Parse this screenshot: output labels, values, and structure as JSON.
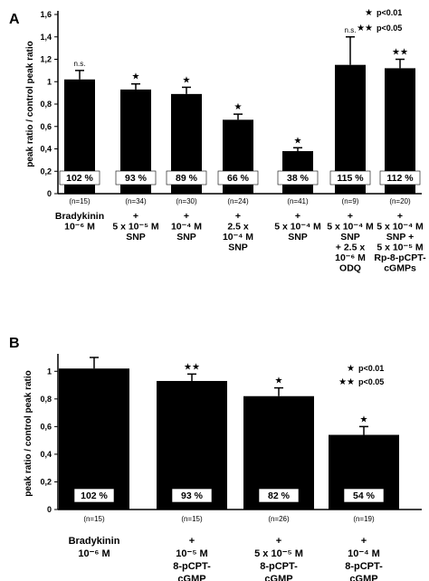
{
  "chart_data": [
    {
      "type": "bar",
      "panel_label": "A",
      "ylabel": "peak ratio / control peak ratio",
      "ylim": [
        0,
        1.6
      ],
      "yticks": [
        "0",
        "0,2",
        "0,4",
        "0,6",
        "0,8",
        "1",
        "1,2",
        "1,4",
        "1,6"
      ],
      "legend": [
        {
          "symbol": "★",
          "text": "p<0.01"
        },
        {
          "symbol": "★★",
          "text": "p<0.05"
        }
      ],
      "categories": [
        {
          "n": "(n=15)",
          "lines": [
            "Bradykinin",
            "10⁻⁶ M"
          ]
        },
        {
          "n": "(n=34)",
          "lines": [
            "+",
            "5 x 10⁻⁵ M",
            "SNP"
          ]
        },
        {
          "n": "(n=30)",
          "lines": [
            "+",
            "10⁻⁴ M",
            "SNP"
          ]
        },
        {
          "n": "(n=24)",
          "lines": [
            "+",
            "2.5 x",
            "10⁻⁴ M",
            "SNP"
          ]
        },
        {
          "n": "(n=41)",
          "lines": [
            "+",
            "5 x 10⁻⁴ M",
            "SNP"
          ]
        },
        {
          "n": "(n=9)",
          "lines": [
            "+",
            "5 x 10⁻⁴ M",
            "SNP",
            "+ 2.5 x",
            "10⁻⁶ M",
            "ODQ"
          ]
        },
        {
          "n": "(n=20)",
          "lines": [
            "+",
            "5 x 10⁻⁴ M",
            "SNP +",
            "5 x 10⁻⁵ M",
            "Rp-8-pCPT-",
            "cGMPs"
          ]
        }
      ],
      "values": [
        1.02,
        0.93,
        0.89,
        0.66,
        0.38,
        1.15,
        1.12
      ],
      "errors": [
        0.08,
        0.05,
        0.06,
        0.05,
        0.03,
        0.25,
        0.08
      ],
      "percent_labels": [
        "102 %",
        "93 %",
        "89 %",
        "66 %",
        "38 %",
        "115 %",
        "112 %"
      ],
      "significance": [
        "n.s.",
        "★",
        "★",
        "★",
        "★",
        "n.s.",
        "★★"
      ]
    },
    {
      "type": "bar",
      "panel_label": "B",
      "ylabel": "peak ratio / control peak ratio",
      "ylim": [
        0,
        1.1
      ],
      "yticks": [
        "0",
        "0,2",
        "0,4",
        "0,6",
        "0,8",
        "1"
      ],
      "legend": [
        {
          "symbol": "★",
          "text": "p<0.01"
        },
        {
          "symbol": "★★",
          "text": "p<0.05"
        }
      ],
      "categories": [
        {
          "n": "(n=15)",
          "lines": [
            "Bradykinin",
            "10⁻⁶ M"
          ]
        },
        {
          "n": "(n=15)",
          "lines": [
            "+",
            "10⁻⁵ M",
            "8-pCPT-",
            "cGMP"
          ]
        },
        {
          "n": "(n=26)",
          "lines": [
            "+",
            "5 x 10⁻⁵ M",
            "8-pCPT-",
            "cGMP"
          ]
        },
        {
          "n": "(n=19)",
          "lines": [
            "+",
            "10⁻⁴ M",
            "8-pCPT-",
            "cGMP"
          ]
        }
      ],
      "values": [
        1.02,
        0.93,
        0.82,
        0.54
      ],
      "errors": [
        0.08,
        0.05,
        0.06,
        0.06
      ],
      "percent_labels": [
        "102 %",
        "93 %",
        "82 %",
        "54 %"
      ],
      "significance": [
        "",
        "★★",
        "★",
        "★"
      ]
    }
  ]
}
